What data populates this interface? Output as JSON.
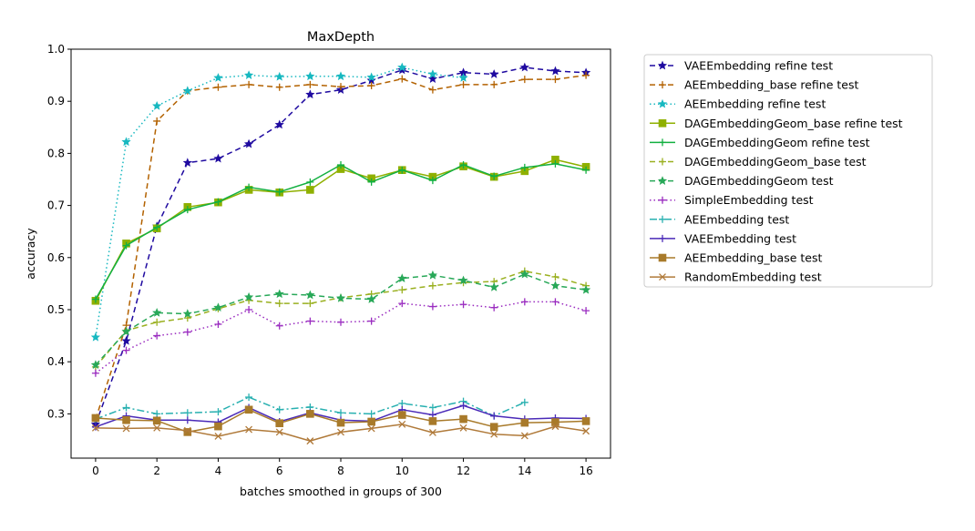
{
  "chart_data": {
    "type": "line",
    "title": "MaxDepth",
    "xlabel": "batches smoothed in groups of 300",
    "ylabel": "accuracy",
    "xlim": [
      -0.8,
      16.8
    ],
    "ylim": [
      0.215,
      1.0
    ],
    "xticks": [
      0,
      2,
      4,
      6,
      8,
      10,
      12,
      14,
      16
    ],
    "yticks": [
      0.3,
      0.4,
      0.5,
      0.6,
      0.7,
      0.8,
      0.9,
      1.0
    ],
    "xtick_labels": [
      "0",
      "2",
      "4",
      "6",
      "8",
      "10",
      "12",
      "14",
      "16"
    ],
    "ytick_labels": [
      "0.3",
      "0.4",
      "0.5",
      "0.6",
      "0.7",
      "0.8",
      "0.9",
      "1.0"
    ],
    "grid": false,
    "legend_position": "outside-right",
    "series": [
      {
        "name": "VAEEmbedding refine test",
        "color": "#1f0aa0",
        "dash": "6,4",
        "marker": "star",
        "values": [
          0.28,
          0.44,
          0.66,
          0.782,
          0.79,
          0.818,
          0.855,
          0.913,
          0.922,
          0.94,
          0.96,
          0.943,
          0.955,
          0.952,
          0.965,
          0.958,
          0.955
        ]
      },
      {
        "name": "AEEmbedding_base refine test",
        "color": "#b36200",
        "dash": "6,4",
        "marker": "plus",
        "values": [
          0.29,
          0.47,
          0.862,
          0.92,
          0.927,
          0.932,
          0.927,
          0.932,
          0.928,
          0.93,
          0.943,
          0.922,
          0.932,
          0.932,
          0.942,
          0.942,
          0.95
        ]
      },
      {
        "name": "AEEmbedding refine test",
        "color": "#17b8c0",
        "dash": "1.5,3",
        "marker": "star",
        "values": [
          0.447,
          0.822,
          0.891,
          0.92,
          0.945,
          0.95,
          0.947,
          0.948,
          0.948,
          0.946,
          0.965,
          0.952,
          0.945
        ]
      },
      {
        "name": "DAGEmbeddingGeom_base refine test",
        "color": "#8fb000",
        "dash": "",
        "marker": "square",
        "values": [
          0.517,
          0.627,
          0.656,
          0.697,
          0.706,
          0.73,
          0.725,
          0.73,
          0.77,
          0.752,
          0.768,
          0.755,
          0.775,
          0.755,
          0.766,
          0.788,
          0.774
        ]
      },
      {
        "name": "DAGEmbeddingGeom refine test",
        "color": "#12b040",
        "dash": "",
        "marker": "plus",
        "values": [
          0.52,
          0.623,
          0.658,
          0.692,
          0.707,
          0.735,
          0.726,
          0.745,
          0.778,
          0.745,
          0.768,
          0.748,
          0.778,
          0.756,
          0.773,
          0.78,
          0.768
        ]
      },
      {
        "name": "DAGEmbeddingGeom_base test",
        "color": "#9ab020",
        "dash": "6,4",
        "marker": "plus",
        "values": [
          0.39,
          0.46,
          0.476,
          0.484,
          0.502,
          0.518,
          0.512,
          0.512,
          0.523,
          0.53,
          0.538,
          0.546,
          0.552,
          0.554,
          0.574,
          0.563,
          0.546
        ]
      },
      {
        "name": "DAGEmbeddingGeom test",
        "color": "#28a858",
        "dash": "6,4",
        "marker": "star",
        "values": [
          0.394,
          0.458,
          0.494,
          0.492,
          0.504,
          0.524,
          0.53,
          0.528,
          0.522,
          0.52,
          0.56,
          0.566,
          0.556,
          0.543,
          0.568,
          0.546,
          0.538
        ]
      },
      {
        "name": "SimpleEmbedding test",
        "color": "#9a2cc0",
        "dash": "1.5,3",
        "marker": "plus",
        "values": [
          0.378,
          0.422,
          0.45,
          0.457,
          0.472,
          0.5,
          0.469,
          0.478,
          0.476,
          0.478,
          0.512,
          0.506,
          0.51,
          0.504,
          0.515,
          0.515,
          0.498
        ]
      },
      {
        "name": "AEEmbedding test",
        "color": "#28b0b0",
        "dash": "8,3,2,3",
        "marker": "plus",
        "values": [
          0.29,
          0.312,
          0.3,
          0.302,
          0.304,
          0.332,
          0.308,
          0.313,
          0.302,
          0.3,
          0.32,
          0.312,
          0.324,
          0.296,
          0.322
        ]
      },
      {
        "name": "VAEEmbedding test",
        "color": "#4a2ab8",
        "dash": "",
        "marker": "plus",
        "values": [
          0.275,
          0.296,
          0.288,
          0.288,
          0.284,
          0.312,
          0.285,
          0.302,
          0.288,
          0.286,
          0.308,
          0.298,
          0.316,
          0.296,
          0.29,
          0.292,
          0.291
        ]
      },
      {
        "name": "AEEmbedding_base test",
        "color": "#a87a2a",
        "dash": "",
        "marker": "square",
        "values": [
          0.292,
          0.288,
          0.287,
          0.265,
          0.276,
          0.308,
          0.282,
          0.3,
          0.283,
          0.285,
          0.298,
          0.286,
          0.29,
          0.275,
          0.283,
          0.284,
          0.286
        ]
      },
      {
        "name": "RandomEmbedding test",
        "color": "#b07a3a",
        "dash": "",
        "marker": "x",
        "values": [
          0.273,
          0.272,
          0.273,
          0.268,
          0.257,
          0.27,
          0.265,
          0.248,
          0.265,
          0.272,
          0.28,
          0.264,
          0.273,
          0.261,
          0.258,
          0.276,
          0.267
        ]
      }
    ]
  }
}
